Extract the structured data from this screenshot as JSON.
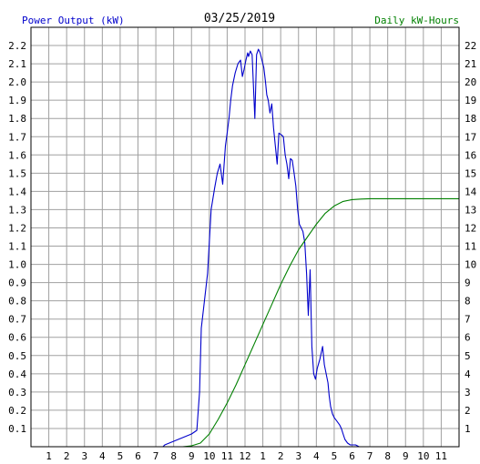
{
  "chart_data": {
    "type": "line",
    "title": "03/25/2019",
    "ylabel_left": "Power Output (kW)",
    "ylabel_right": "Daily kW-Hours",
    "xlabel": "",
    "x_tick_labels": [
      "1",
      "2",
      "3",
      "4",
      "5",
      "6",
      "7",
      "8",
      "9",
      "10",
      "11",
      "12",
      "1",
      "2",
      "3",
      "4",
      "5",
      "6",
      "7",
      "8",
      "9",
      "10",
      "11"
    ],
    "x_range_hours": [
      0,
      24
    ],
    "y_left_range": [
      0,
      2.3
    ],
    "y_left_ticks": [
      "0.1",
      "0.2",
      "0.3",
      "0.4",
      "0.5",
      "0.6",
      "0.7",
      "0.8",
      "0.9",
      "1.0",
      "1.1",
      "1.2",
      "1.3",
      "1.4",
      "1.5",
      "1.6",
      "1.7",
      "1.8",
      "1.9",
      "2.0",
      "2.1",
      "2.2"
    ],
    "y_right_range": [
      0,
      23
    ],
    "y_right_ticks": [
      "1",
      "2",
      "3",
      "4",
      "5",
      "6",
      "7",
      "8",
      "9",
      "10",
      "11",
      "12",
      "13",
      "14",
      "15",
      "16",
      "17",
      "18",
      "19",
      "20",
      "21",
      "22"
    ],
    "grid": true,
    "colors": {
      "left_axis_label": "#0000cc",
      "right_axis_label": "#008000",
      "power_line": "#0000cc",
      "energy_line": "#008000",
      "grid": "#a0a0a0",
      "axis": "#000000"
    },
    "series": [
      {
        "axis": "left",
        "x_hours": [
          0,
          7.4,
          7.5,
          8.0,
          8.5,
          9.0,
          9.3,
          9.45,
          9.55,
          9.7,
          9.9,
          10.1,
          10.3,
          10.45,
          10.6,
          10.75,
          10.9,
          11.0,
          11.1,
          11.2,
          11.3,
          11.45,
          11.6,
          11.75,
          11.85,
          11.95,
          12.05,
          12.15,
          12.2,
          12.3,
          12.4,
          12.55,
          12.65,
          12.75,
          12.85,
          12.95,
          13.05,
          13.15,
          13.22,
          13.3,
          13.4,
          13.5,
          13.6,
          13.7,
          13.8,
          13.9,
          14.05,
          14.15,
          14.25,
          14.35,
          14.45,
          14.55,
          14.65,
          14.75,
          14.85,
          14.95,
          15.05,
          15.15,
          15.25,
          15.35,
          15.45,
          15.55,
          15.65,
          15.75,
          15.85,
          15.95,
          16.05,
          16.2,
          16.35,
          16.45,
          16.55,
          16.65,
          16.72,
          16.8,
          16.9,
          17.0,
          17.15,
          17.3,
          17.4,
          17.5,
          17.6,
          17.75,
          17.9,
          18.05,
          18.2,
          18.4,
          18.6,
          18.8,
          19.0,
          19.3,
          19.6,
          24
        ],
        "values": [
          0,
          0,
          0.01,
          0.03,
          0.05,
          0.07,
          0.09,
          0.3,
          0.65,
          0.78,
          0.95,
          1.3,
          1.42,
          1.5,
          1.55,
          1.44,
          1.65,
          1.72,
          1.8,
          1.9,
          1.98,
          2.05,
          2.1,
          2.12,
          2.03,
          2.07,
          2.12,
          2.16,
          2.14,
          2.17,
          2.15,
          1.8,
          2.15,
          2.18,
          2.16,
          2.12,
          2.08,
          2.0,
          1.93,
          1.9,
          1.83,
          1.88,
          1.75,
          1.65,
          1.55,
          1.72,
          1.71,
          1.7,
          1.6,
          1.55,
          1.47,
          1.58,
          1.57,
          1.5,
          1.43,
          1.3,
          1.22,
          1.2,
          1.18,
          1.12,
          0.95,
          0.72,
          0.97,
          0.55,
          0.4,
          0.37,
          0.43,
          0.48,
          0.55,
          0.45,
          0.4,
          0.35,
          0.28,
          0.22,
          0.18,
          0.16,
          0.14,
          0.12,
          0.1,
          0.07,
          0.04,
          0.02,
          0.01,
          0.01,
          0.01,
          0,
          0,
          0,
          0,
          0,
          0,
          0
        ]
      },
      {
        "axis": "right",
        "x_hours": [
          0,
          8.5,
          9.0,
          9.5,
          10.0,
          10.5,
          11.0,
          11.5,
          12.0,
          12.5,
          13.0,
          13.5,
          14.0,
          14.5,
          15.0,
          15.5,
          16.0,
          16.5,
          17.0,
          17.5,
          18.0,
          18.5,
          19.0,
          19.5,
          20.0,
          24
        ],
        "values": [
          0,
          0,
          0.05,
          0.2,
          0.7,
          1.5,
          2.4,
          3.4,
          4.5,
          5.6,
          6.7,
          7.8,
          8.9,
          9.9,
          10.8,
          11.5,
          12.2,
          12.8,
          13.2,
          13.45,
          13.55,
          13.58,
          13.6,
          13.6,
          13.6,
          13.6
        ]
      }
    ]
  }
}
